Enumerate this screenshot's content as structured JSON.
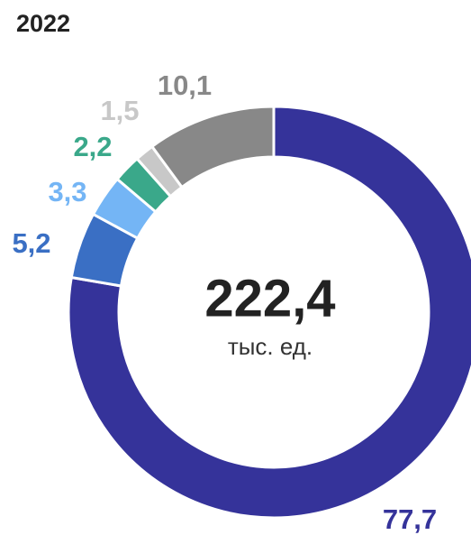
{
  "chart_data": {
    "type": "donut",
    "title": "2022",
    "center_text": "222,4",
    "center_subtext": "тыс. ед.",
    "categories": [
      null,
      null,
      null,
      null,
      null,
      null
    ],
    "values": [
      77.7,
      5.2,
      3.3,
      2.2,
      1.5,
      10.1
    ],
    "value_labels": [
      "77,7",
      "5,2",
      "3,3",
      "2,2",
      "1,5",
      "10,1"
    ],
    "colors": [
      "#35339a",
      "#3a6fc4",
      "#74b5f5",
      "#3aa88a",
      "#c8c8c8",
      "#888888"
    ]
  }
}
